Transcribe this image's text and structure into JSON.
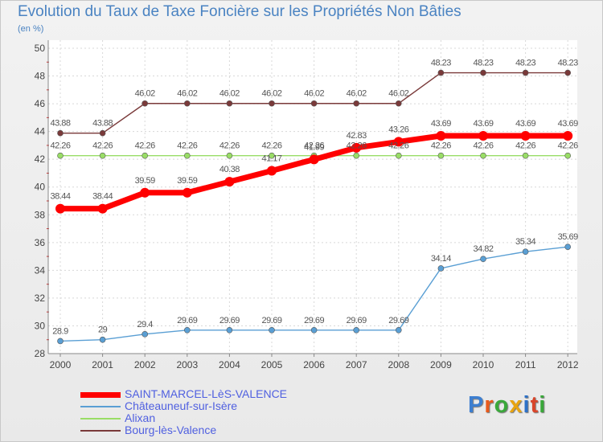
{
  "header": {
    "title": "Evolution du Taux de Taxe Foncière sur les Propriétés Non Bâties",
    "subtitle": "(en %)"
  },
  "logo": {
    "text": "Proxiti",
    "letter_colors": [
      "#3d7fd0",
      "#e85a1c",
      "#3aa83a",
      "#e8a410",
      "#2d71c7",
      "#d9452a",
      "#3aa83a"
    ]
  },
  "chart_data": {
    "type": "line",
    "title": "Evolution du Taux de Taxe Foncière sur les Propriétés Non Bâties",
    "ylabel": "(en %)",
    "xlabel": "",
    "x": [
      "2000",
      "2001",
      "2002",
      "2003",
      "2004",
      "2005",
      "2006",
      "2007",
      "2008",
      "2009",
      "2010",
      "2011",
      "2012"
    ],
    "ylim": [
      28,
      50
    ],
    "yticks": [
      28,
      30,
      32,
      34,
      36,
      38,
      40,
      42,
      44,
      46,
      48,
      50
    ],
    "grid": true,
    "legend": "bottom-left",
    "series": [
      {
        "name": "SAINT-MARCEL-LèS-VALENCE",
        "color": "#ff0000",
        "values": [
          38.44,
          38.44,
          39.59,
          39.59,
          40.38,
          41.17,
          41.99,
          42.83,
          43.26,
          43.69,
          43.69,
          43.69,
          43.69
        ],
        "labels": [
          "38.44",
          "38.44",
          "39.59",
          "39.59",
          "40.38",
          "41.17",
          "41.99",
          "42.83",
          "43.26",
          "43.69",
          "43.69",
          "43.69",
          "43.69"
        ]
      },
      {
        "name": "Châteauneuf-sur-Isère",
        "color": "#5a9fd4",
        "values": [
          28.9,
          29,
          29.4,
          29.69,
          29.69,
          29.69,
          29.69,
          29.69,
          29.69,
          34.14,
          34.82,
          35.34,
          35.69
        ],
        "labels": [
          "28.9",
          "29",
          "29.4",
          "29.69",
          "29.69",
          "29.69",
          "29.69",
          "29.69",
          "29.69",
          "34.14",
          "34.82",
          "35.34",
          "35.69"
        ]
      },
      {
        "name": "Alixan",
        "color": "#99dd66",
        "values": [
          42.26,
          42.26,
          42.26,
          42.26,
          42.26,
          42.26,
          42.26,
          42.26,
          42.26,
          42.26,
          42.26,
          42.26,
          42.26
        ],
        "labels": [
          "42.26",
          "42.26",
          "42.26",
          "42.26",
          "42.26",
          "42.26",
          "42.26",
          "42.26",
          "42.26",
          "42.26",
          "42.26",
          "42.26",
          "42.26"
        ]
      },
      {
        "name": "Bourg-lès-Valence",
        "color": "#7a3a3a",
        "values": [
          43.88,
          43.88,
          46.02,
          46.02,
          46.02,
          46.02,
          46.02,
          46.02,
          46.02,
          48.23,
          48.23,
          48.23,
          48.23
        ],
        "labels": [
          "43.88",
          "43.88",
          "46.02",
          "46.02",
          "46.02",
          "46.02",
          "46.02",
          "46.02",
          "46.02",
          "48.23",
          "48.23",
          "48.23",
          "48.23"
        ]
      }
    ]
  }
}
